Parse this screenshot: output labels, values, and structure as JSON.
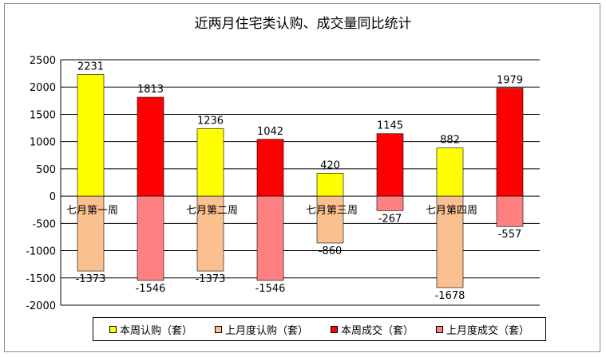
{
  "chart_data": {
    "type": "bar",
    "title": "近两月住宅类认购、成交量同比统计",
    "categories": [
      "七月第一周",
      "七月第二周",
      "七月第三周",
      "七月第四周"
    ],
    "series": [
      {
        "name": "本周认购（套）",
        "color": "#ffff00",
        "values": [
          2231,
          1236,
          420,
          882
        ]
      },
      {
        "name": "上月度认购（套）",
        "color": "#fac090",
        "values": [
          -1373,
          -1373,
          -860,
          -1678
        ]
      },
      {
        "name": "本周成交（套）",
        "color": "#ff0000",
        "values": [
          1813,
          1042,
          1145,
          1979
        ]
      },
      {
        "name": "上月度成交（套）",
        "color": "#ff8080",
        "values": [
          -1546,
          -1546,
          -267,
          -557
        ]
      }
    ],
    "ylim": [
      -2000,
      2500
    ],
    "yticks": [
      2500,
      2000,
      1500,
      1000,
      500,
      0,
      -500,
      -1000,
      -1500,
      -2000
    ],
    "grid": true,
    "legend_position": "bottom"
  }
}
